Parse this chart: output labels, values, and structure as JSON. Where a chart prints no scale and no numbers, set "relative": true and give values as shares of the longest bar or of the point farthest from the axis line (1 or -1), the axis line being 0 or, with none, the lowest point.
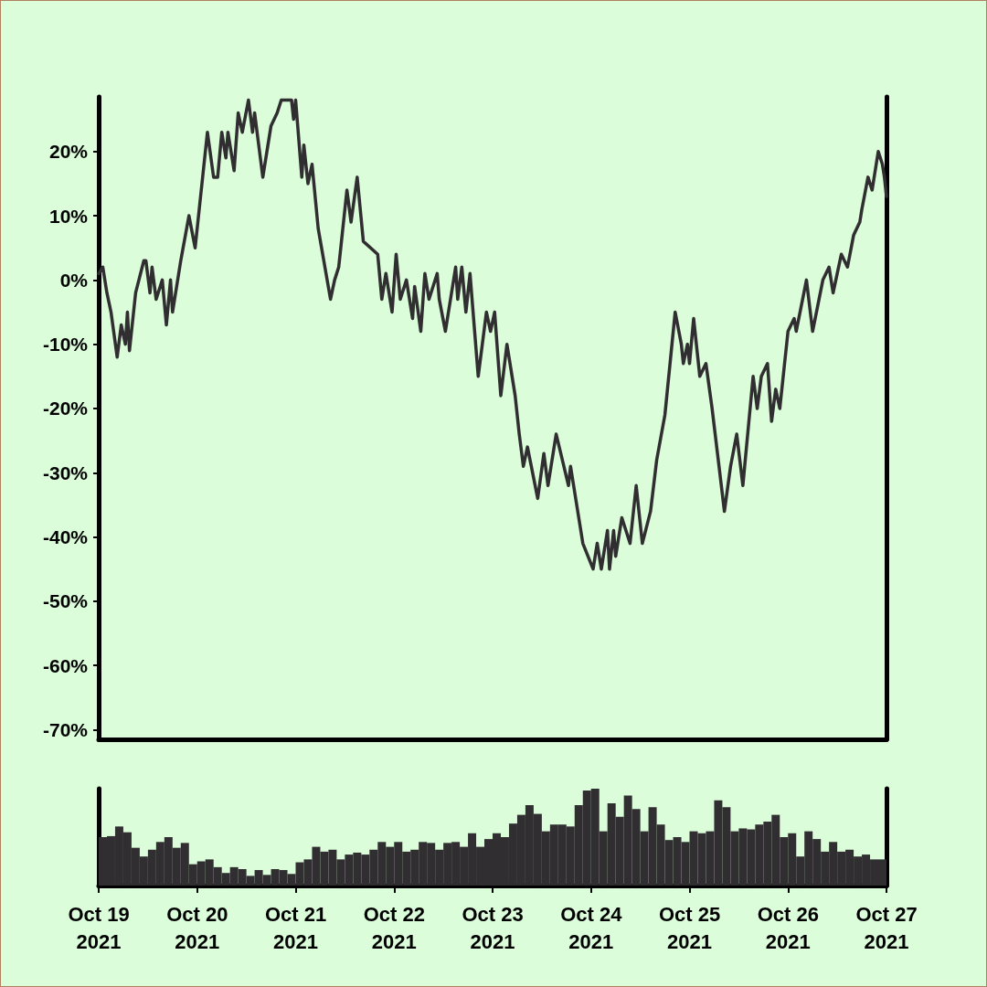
{
  "chart_data": [
    {
      "type": "line",
      "tick_labels": "y",
      "x": [
        "2021-10-19T00:00",
        "2021-10-19T01:00",
        "2021-10-19T02:00",
        "2021-10-19T03:00",
        "2021-10-19T04:30",
        "2021-10-19T05:30",
        "2021-10-19T06:30",
        "2021-10-19T07:00",
        "2021-10-19T07:30",
        "2021-10-19T09:00",
        "2021-10-19T11:00",
        "2021-10-19T11:30",
        "2021-10-19T12:30",
        "2021-10-19T13:00",
        "2021-10-19T14:00",
        "2021-10-19T15:30",
        "2021-10-19T16:30",
        "2021-10-19T17:30",
        "2021-10-19T18:00",
        "2021-10-19T20:00",
        "2021-10-19T22:00",
        "2021-10-19T23:30",
        "2021-10-20T01:00",
        "2021-10-20T02:30",
        "2021-10-20T04:00",
        "2021-10-20T05:00",
        "2021-10-20T06:00",
        "2021-10-20T07:00",
        "2021-10-20T07:30",
        "2021-10-20T09:00",
        "2021-10-20T10:00",
        "2021-10-20T11:00",
        "2021-10-20T12:30",
        "2021-10-20T13:30",
        "2021-10-20T14:00",
        "2021-10-20T16:00",
        "2021-10-20T18:00",
        "2021-10-20T19:30",
        "2021-10-20T20:30",
        "2021-10-20T23:00",
        "2021-10-20T23:30",
        "2021-10-21T00:00",
        "2021-10-21T01:30",
        "2021-10-21T02:00",
        "2021-10-21T03:00",
        "2021-10-21T04:00",
        "2021-10-21T05:30",
        "2021-10-21T08:30",
        "2021-10-21T09:30",
        "2021-10-21T10:30",
        "2021-10-21T12:30",
        "2021-10-21T13:30",
        "2021-10-21T15:00",
        "2021-10-21T16:30",
        "2021-10-21T20:00",
        "2021-10-21T21:00",
        "2021-10-21T22:00",
        "2021-10-21T23:30",
        "2021-10-22T00:30",
        "2021-10-22T01:30",
        "2021-10-22T03:00",
        "2021-10-22T04:30",
        "2021-10-22T05:00",
        "2021-10-22T06:30",
        "2021-10-22T07:30",
        "2021-10-22T08:30",
        "2021-10-22T10:30",
        "2021-10-22T11:00",
        "2021-10-22T12:30",
        "2021-10-22T15:00",
        "2021-10-22T15:30",
        "2021-10-22T16:30",
        "2021-10-22T17:30",
        "2021-10-22T18:30",
        "2021-10-22T20:30",
        "2021-10-22T22:30",
        "2021-10-22T23:30",
        "2021-10-23T00:30",
        "2021-10-23T02:00",
        "2021-10-23T03:30",
        "2021-10-23T05:30",
        "2021-10-23T06:30",
        "2021-10-23T07:30",
        "2021-10-23T08:30",
        "2021-10-23T11:00",
        "2021-10-23T12:30",
        "2021-10-23T13:30",
        "2021-10-23T15:30",
        "2021-10-23T18:30",
        "2021-10-23T19:00",
        "2021-10-23T22:00",
        "2021-10-24T00:30",
        "2021-10-24T01:30",
        "2021-10-24T02:30",
        "2021-10-24T04:00",
        "2021-10-24T04:30",
        "2021-10-24T05:30",
        "2021-10-24T06:00",
        "2021-10-24T07:30",
        "2021-10-24T09:30",
        "2021-10-24T11:00",
        "2021-10-24T12:30",
        "2021-10-24T14:30",
        "2021-10-24T16:00",
        "2021-10-24T18:00",
        "2021-10-24T20:30",
        "2021-10-24T22:00",
        "2021-10-24T22:30",
        "2021-10-24T23:30",
        "2021-10-25T00:00",
        "2021-10-25T01:00",
        "2021-10-25T02:30",
        "2021-10-25T04:00",
        "2021-10-25T05:30",
        "2021-10-25T08:30",
        "2021-10-25T10:00",
        "2021-10-25T11:30",
        "2021-10-25T13:00",
        "2021-10-25T15:30",
        "2021-10-25T16:30",
        "2021-10-25T17:30",
        "2021-10-25T19:00",
        "2021-10-25T20:00",
        "2021-10-25T21:00",
        "2021-10-25T22:00",
        "2021-10-26T00:00",
        "2021-10-26T01:30",
        "2021-10-26T02:00",
        "2021-10-26T04:30",
        "2021-10-26T06:00",
        "2021-10-26T08:30",
        "2021-10-26T10:00",
        "2021-10-26T11:00",
        "2021-10-26T13:00",
        "2021-10-26T14:30",
        "2021-10-26T16:00",
        "2021-10-26T17:30",
        "2021-10-26T18:00",
        "2021-10-26T19:30",
        "2021-10-26T20:30",
        "2021-10-26T22:00",
        "2021-10-26T23:00",
        "2021-10-26T23:30",
        "2021-10-27T00:00"
      ],
      "series": [
        {
          "color": "#302e30",
          "values": [
            1,
            2,
            -2,
            -5,
            -12,
            -7,
            -10,
            -5,
            -11,
            -2,
            3,
            3,
            -2,
            2,
            -3,
            0,
            -7,
            0,
            -5,
            3,
            10,
            5,
            14,
            23,
            16,
            16,
            23,
            19,
            23,
            17,
            26,
            23,
            28,
            23,
            26,
            16,
            24,
            26,
            28,
            28,
            25,
            28,
            16,
            21,
            15,
            18,
            8,
            -3,
            0,
            2,
            14,
            9,
            16,
            6,
            4,
            -3,
            1,
            -5,
            4,
            -3,
            0,
            -6,
            -1,
            -8,
            1,
            -3,
            1,
            -3,
            -8,
            2,
            -3,
            2,
            -5,
            1,
            -15,
            -5,
            -8,
            -5,
            -18,
            -10,
            -18,
            -24,
            -29,
            -26,
            -34,
            -27,
            -32,
            -24,
            -32,
            -29,
            -41,
            -45,
            -41,
            -45,
            -39,
            -45,
            -39,
            -43,
            -37,
            -41,
            -32,
            -41,
            -36,
            -28,
            -21,
            -5,
            -10,
            -13,
            -10,
            -13,
            -6,
            -15,
            -13,
            -20,
            -36,
            -29,
            -24,
            -32,
            -15,
            -20,
            -15,
            -13,
            -22,
            -17,
            -20,
            -8,
            -6,
            -8,
            0,
            -8,
            0,
            2,
            -2,
            4,
            2,
            7,
            9,
            11,
            16,
            14,
            20,
            18,
            16,
            13
          ]
        }
      ],
      "xlim": [
        "2021-10-19",
        "2021-10-27"
      ],
      "ylim": [
        -71.5,
        28.5
      ],
      "yticks": [
        {
          "value": 20,
          "label": "20%"
        },
        {
          "value": 10,
          "label": "10%"
        },
        {
          "value": 0,
          "label": "0%"
        },
        {
          "value": -10,
          "label": "-10%"
        },
        {
          "value": -20,
          "label": "-20%"
        },
        {
          "value": -30,
          "label": "-30%"
        },
        {
          "value": -40,
          "label": "-40%"
        },
        {
          "value": -50,
          "label": "-50%"
        },
        {
          "value": -60,
          "label": "-60%"
        },
        {
          "value": -70,
          "label": "-70%"
        }
      ]
    },
    {
      "type": "bar",
      "relative": true,
      "tick_labels": "x",
      "x": [
        "2021-10-19T01:00",
        "2021-10-19T03:00",
        "2021-10-19T05:00",
        "2021-10-19T07:00",
        "2021-10-19T09:00",
        "2021-10-19T11:00",
        "2021-10-19T13:00",
        "2021-10-19T15:00",
        "2021-10-19T17:00",
        "2021-10-19T19:00",
        "2021-10-19T21:00",
        "2021-10-19T23:00",
        "2021-10-20T01:00",
        "2021-10-20T03:00",
        "2021-10-20T05:00",
        "2021-10-20T07:00",
        "2021-10-20T09:00",
        "2021-10-20T11:00",
        "2021-10-20T13:00",
        "2021-10-20T15:00",
        "2021-10-20T17:00",
        "2021-10-20T19:00",
        "2021-10-20T21:00",
        "2021-10-20T23:00",
        "2021-10-21T01:00",
        "2021-10-21T03:00",
        "2021-10-21T05:00",
        "2021-10-21T07:00",
        "2021-10-21T09:00",
        "2021-10-21T11:00",
        "2021-10-21T13:00",
        "2021-10-21T15:00",
        "2021-10-21T17:00",
        "2021-10-21T19:00",
        "2021-10-21T21:00",
        "2021-10-21T23:00",
        "2021-10-22T01:00",
        "2021-10-22T03:00",
        "2021-10-22T05:00",
        "2021-10-22T07:00",
        "2021-10-22T09:00",
        "2021-10-22T11:00",
        "2021-10-22T13:00",
        "2021-10-22T15:00",
        "2021-10-22T17:00",
        "2021-10-22T19:00",
        "2021-10-22T21:00",
        "2021-10-22T23:00",
        "2021-10-23T01:00",
        "2021-10-23T03:00",
        "2021-10-23T05:00",
        "2021-10-23T07:00",
        "2021-10-23T09:00",
        "2021-10-23T11:00",
        "2021-10-23T13:00",
        "2021-10-23T15:00",
        "2021-10-23T17:00",
        "2021-10-23T19:00",
        "2021-10-23T21:00",
        "2021-10-23T23:00",
        "2021-10-24T01:00",
        "2021-10-24T03:00",
        "2021-10-24T05:00",
        "2021-10-24T07:00",
        "2021-10-24T09:00",
        "2021-10-24T11:00",
        "2021-10-24T13:00",
        "2021-10-24T15:00",
        "2021-10-24T17:00",
        "2021-10-24T19:00",
        "2021-10-24T21:00",
        "2021-10-24T23:00",
        "2021-10-25T01:00",
        "2021-10-25T03:00",
        "2021-10-25T05:00",
        "2021-10-25T07:00",
        "2021-10-25T09:00",
        "2021-10-25T11:00",
        "2021-10-25T13:00",
        "2021-10-25T15:00",
        "2021-10-25T17:00",
        "2021-10-25T19:00",
        "2021-10-25T21:00",
        "2021-10-25T23:00",
        "2021-10-26T01:00",
        "2021-10-26T03:00",
        "2021-10-26T05:00",
        "2021-10-26T07:00",
        "2021-10-26T09:00",
        "2021-10-26T11:00",
        "2021-10-26T13:00",
        "2021-10-26T15:00",
        "2021-10-26T17:00",
        "2021-10-26T19:00",
        "2021-10-26T21:00",
        "2021-10-26T23:00"
      ],
      "series": [
        {
          "color": "#302e30",
          "values": [
            0.5,
            0.51,
            0.61,
            0.55,
            0.39,
            0.3,
            0.37,
            0.45,
            0.5,
            0.39,
            0.44,
            0.22,
            0.25,
            0.27,
            0.19,
            0.13,
            0.19,
            0.17,
            0.1,
            0.16,
            0.11,
            0.17,
            0.16,
            0.12,
            0.24,
            0.27,
            0.4,
            0.35,
            0.37,
            0.27,
            0.32,
            0.34,
            0.32,
            0.37,
            0.45,
            0.4,
            0.45,
            0.35,
            0.37,
            0.45,
            0.44,
            0.37,
            0.44,
            0.45,
            0.4,
            0.54,
            0.4,
            0.48,
            0.54,
            0.5,
            0.64,
            0.73,
            0.83,
            0.74,
            0.56,
            0.63,
            0.63,
            0.61,
            0.83,
            0.98,
            1,
            0.56,
            0.85,
            0.71,
            0.93,
            0.79,
            0.56,
            0.81,
            0.63,
            0.47,
            0.5,
            0.45,
            0.56,
            0.54,
            0.56,
            0.88,
            0.81,
            0.56,
            0.59,
            0.58,
            0.63,
            0.66,
            0.73,
            0.5,
            0.54,
            0.3,
            0.56,
            0.48,
            0.35,
            0.45,
            0.35,
            0.37,
            0.3,
            0.32,
            0.27,
            0.27
          ]
        }
      ],
      "xlim": [
        "2021-10-19",
        "2021-10-27"
      ],
      "xticks": [
        {
          "value": "2021-10-19",
          "label": "Oct 19\n2021"
        },
        {
          "value": "2021-10-20",
          "label": "Oct 20\n2021"
        },
        {
          "value": "2021-10-21",
          "label": "Oct 21\n2021"
        },
        {
          "value": "2021-10-22",
          "label": "Oct 22\n2021"
        },
        {
          "value": "2021-10-23",
          "label": "Oct 23\n2021"
        },
        {
          "value": "2021-10-24",
          "label": "Oct 24\n2021"
        },
        {
          "value": "2021-10-25",
          "label": "Oct 25\n2021"
        },
        {
          "value": "2021-10-26",
          "label": "Oct 26\n2021"
        },
        {
          "value": "2021-10-27",
          "label": "Oct 27\n2021"
        }
      ]
    }
  ]
}
